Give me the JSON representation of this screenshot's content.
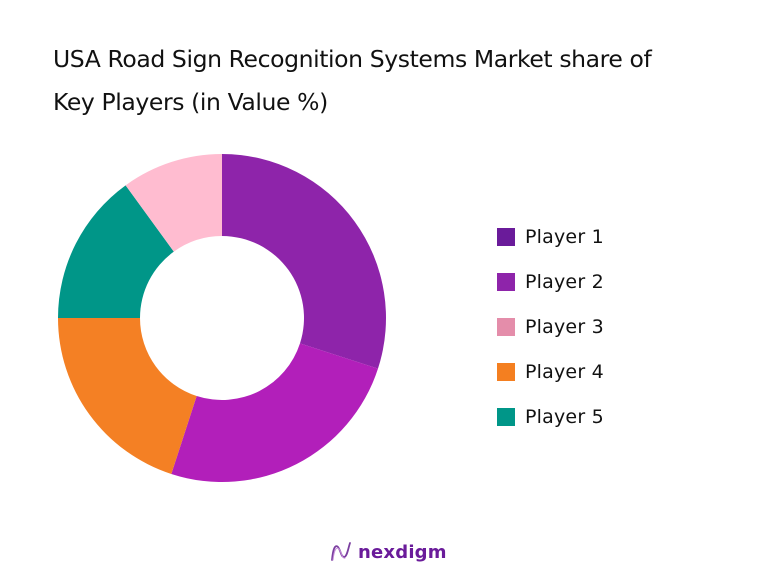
{
  "chart_data": {
    "type": "pie",
    "variant": "donut",
    "title": "USA Road Sign Recognition Systems Market share of Key Players (in Value %)",
    "title_lines": [
      "USA Road Sign Recognition Systems Market share of",
      "Key Players (in Value %)"
    ],
    "categories": [
      "Player 1",
      "Player 2",
      "Player 3",
      "Player 4",
      "Player 5"
    ],
    "values": [
      30,
      25,
      10,
      20,
      15
    ],
    "unit": "%",
    "slice_order_clockwise_from_top": [
      "Player 1",
      "Player 2",
      "Player 4",
      "Player 5",
      "Player 3"
    ],
    "slice_colors": {
      "Player 1": "#8E24AA",
      "Player 2": "#B21FBA",
      "Player 3": "#FFBCD0",
      "Player 4": "#F48024",
      "Player 5": "#009688"
    },
    "legend_colors": {
      "Player 1": "#6A1B9A",
      "Player 2": "#8E24AA",
      "Player 3": "#E48DAA",
      "Player 4": "#F47F20",
      "Player 5": "#009688"
    },
    "legend_position": "right",
    "data_labels": false,
    "grid": false
  },
  "legend": {
    "items": [
      {
        "label": "Player 1",
        "color": "#6A1B9A"
      },
      {
        "label": "Player 2",
        "color": "#8E24AA"
      },
      {
        "label": "Player 3",
        "color": "#E48DAA"
      },
      {
        "label": "Player 4",
        "color": "#F47F20"
      },
      {
        "label": "Player 5",
        "color": "#009688"
      }
    ]
  },
  "logo": {
    "text": "nexdigm",
    "color": "#6A1B9A"
  }
}
